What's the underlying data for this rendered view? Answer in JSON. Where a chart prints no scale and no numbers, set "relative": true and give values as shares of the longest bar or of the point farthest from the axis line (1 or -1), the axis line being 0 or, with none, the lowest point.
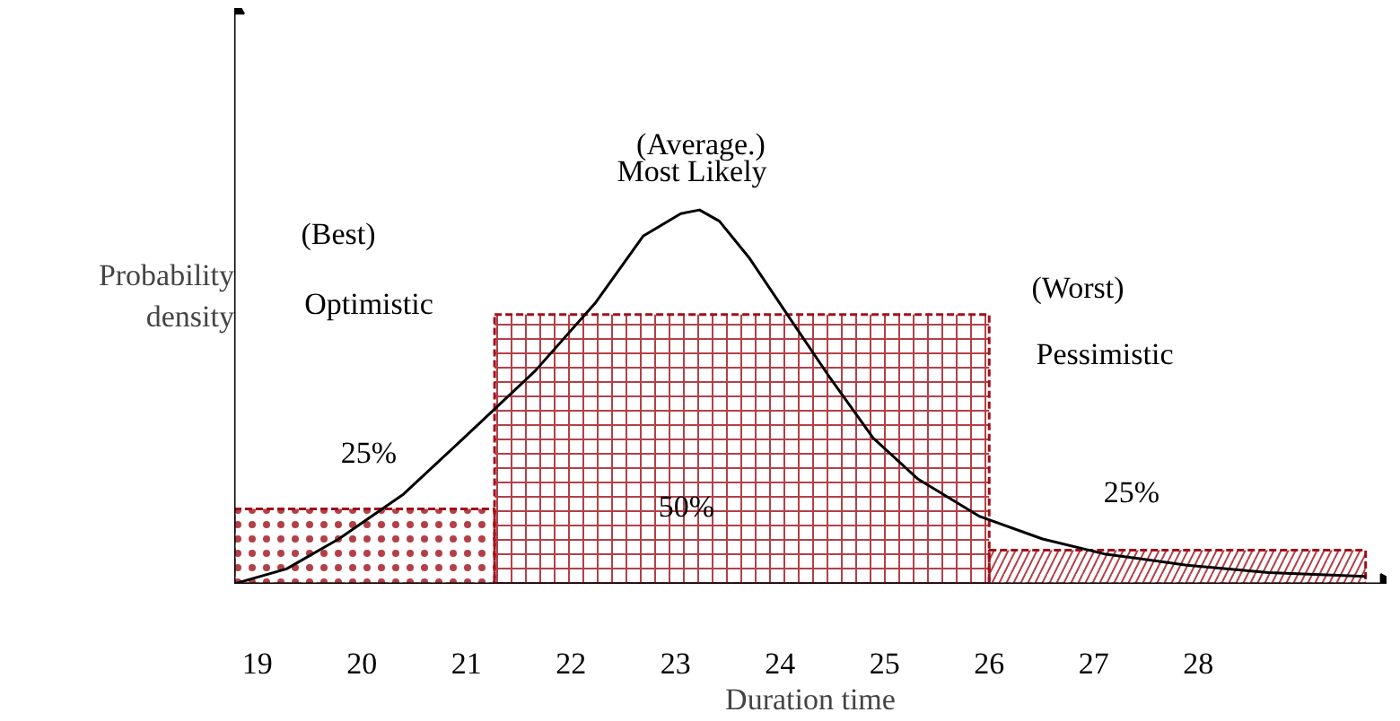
{
  "chart_data": {
    "type": "line",
    "relative": true,
    "xlabel": "Duration time",
    "ylabel": "Probability density",
    "xlim": [
      18.78,
      29.8
    ],
    "xticks": [
      19,
      20,
      21,
      22,
      23,
      24,
      25,
      26,
      27,
      28
    ],
    "tick_labels": "x",
    "grid": false,
    "series": [
      {
        "type": "histogram",
        "color": "#a0101a",
        "bins": [
          18.78,
          21.27,
          26,
          29.6
        ],
        "values": [
          0.2,
          0.72,
          0.09
        ]
      },
      {
        "color": "#000000",
        "x": [
          18.78,
          19.28,
          19.78,
          20.4,
          21.09,
          21.66,
          22.23,
          22.69,
          23.05,
          23.23,
          23.42,
          23.71,
          24.07,
          24.48,
          24.89,
          25.32,
          25.91,
          26.51,
          27.1,
          27.89,
          28.67,
          29.6
        ],
        "values": [
          0,
          0.04,
          0.12,
          0.24,
          0.42,
          0.57,
          0.75,
          0.93,
          0.99,
          1,
          0.97,
          0.87,
          0.72,
          0.55,
          0.39,
          0.28,
          0.18,
          0.12,
          0.08,
          0.05,
          0.03,
          0.02
        ]
      }
    ],
    "annotations": [
      "(Average.)",
      "Most Likely",
      "(Best)",
      "Optimistic",
      "(Worst)",
      "Pessimistic",
      "25%",
      "50%",
      "25%"
    ]
  }
}
